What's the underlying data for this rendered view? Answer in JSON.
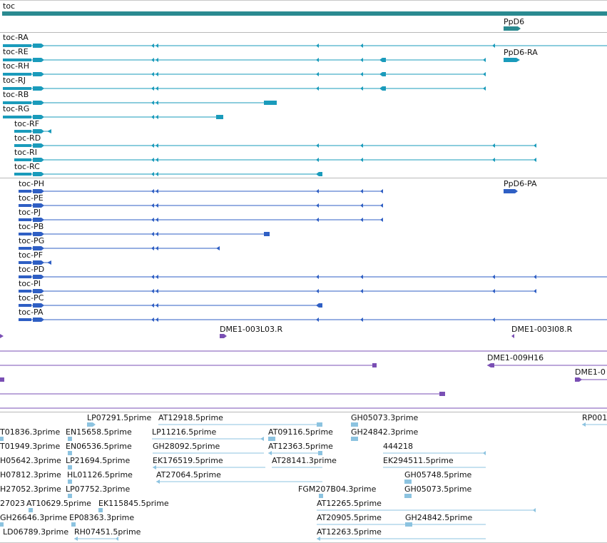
{
  "colors": {
    "gene": "#2a8a90",
    "transcript": "#1a9bbb",
    "protein": "#2f5fc4",
    "probe": "#7a4fb4",
    "est": "#8cc3e0",
    "divider": "#b9b9b9",
    "text": "#111111"
  },
  "gene_track": {
    "rows": [
      {
        "label": "toc",
        "feature": "gene-bar"
      },
      {
        "label": "PpD6",
        "feature": "small-gene"
      }
    ]
  },
  "transcript_track": {
    "rows": [
      {
        "label": "toc-RA"
      },
      {
        "label": "toc-RE"
      },
      {
        "label": "toc-RH"
      },
      {
        "label": "toc-RJ"
      },
      {
        "label": "toc-RB"
      },
      {
        "label": "toc-RG"
      },
      {
        "label": "toc-RF"
      },
      {
        "label": "toc-RD"
      },
      {
        "label": "toc-RI"
      },
      {
        "label": "toc-RC"
      },
      {
        "label": "PpD6-RA"
      }
    ]
  },
  "protein_track": {
    "rows": [
      {
        "label": "toc-PH"
      },
      {
        "label": "toc-PE"
      },
      {
        "label": "toc-PJ"
      },
      {
        "label": "toc-PB"
      },
      {
        "label": "toc-PG"
      },
      {
        "label": "toc-PF"
      },
      {
        "label": "toc-PD"
      },
      {
        "label": "toc-PI"
      },
      {
        "label": "toc-PC"
      },
      {
        "label": "toc-PA"
      },
      {
        "label": "PpD6-PA"
      }
    ]
  },
  "probe_track": {
    "labels": [
      "DME1-003L03.R",
      "DME1-003I08.R",
      "DME1-009H16",
      "DME1-0"
    ]
  },
  "est_track": {
    "labels": [
      "LP07291.5prime",
      "AT12918.5prime",
      "GH05073.3prime",
      "RP001",
      "T01836.3prime",
      "EN15658.5prime",
      "LP11216.5prime",
      "AT09116.5prime",
      "GH24842.3prime",
      "T01949.3prime",
      "EN06536.5prime",
      "GH28092.5prime",
      "AT12363.5prime",
      "444218",
      "H05642.3prime",
      "LP21694.5prime",
      "EK176519.5prime",
      "AT28141.3prime",
      "EK294511.5prime",
      "H07812.3prime",
      "HL01126.5prime",
      "AT27064.5prime",
      "GH05748.5prime",
      "H27052.3prime",
      "LP07752.3prime",
      "FGM207B04.3prime",
      "GH05073.5prime",
      "27023",
      "AT10629.5prime",
      "EK115845.5prime",
      "AT12265.5prime",
      "GH26646.3prime",
      "EP08363.3prime",
      "AT20905.5prime",
      "GH24842.5prime",
      "LD06789.3prime",
      "RH07451.5prime",
      "AT12263.5prime"
    ]
  }
}
